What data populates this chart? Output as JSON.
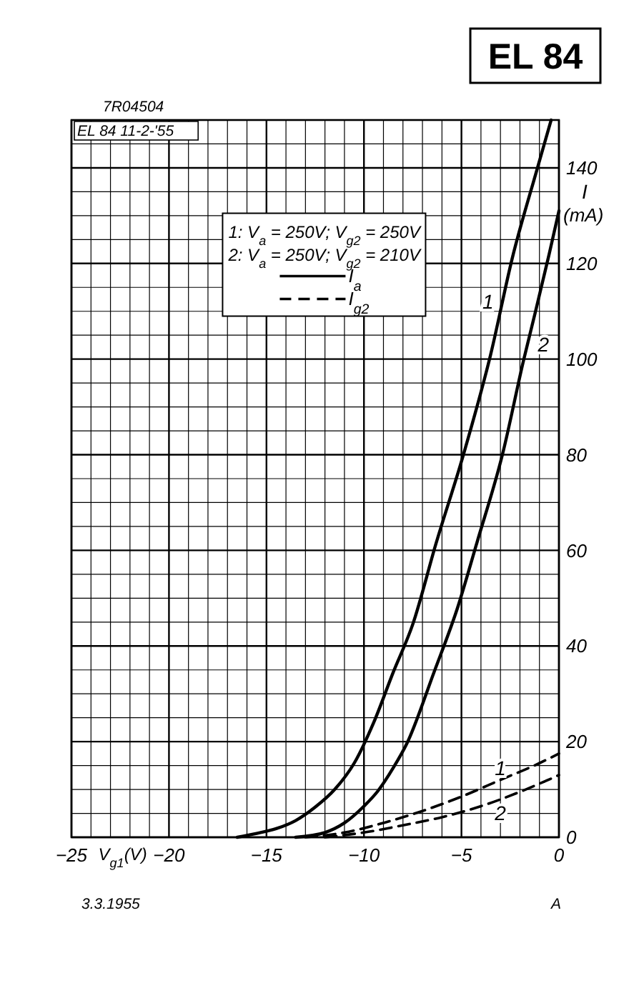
{
  "chart_data": {
    "type": "line",
    "title": "EL 84",
    "xlabel": "V$_{g1}$(V)",
    "ylabel": "I (mA)",
    "legend_title": "1: V$_{a}$ = 250V; V$_{g2}$ = 250V\n2: V$_{a}$ = 250V; V$_{g2}$ = 210V",
    "legend": "top left",
    "grid": true,
    "xlim": [
      -25,
      0
    ],
    "ylim": [
      0,
      150
    ],
    "xticks": [
      {
        "value": -25,
        "label": "−25"
      },
      {
        "value": -24,
        "label": null
      },
      {
        "value": -23,
        "label": null
      },
      {
        "value": -22,
        "label": null
      },
      {
        "value": -21,
        "label": null
      },
      {
        "value": -20,
        "label": "−20"
      },
      {
        "value": -19,
        "label": null
      },
      {
        "value": -18,
        "label": null
      },
      {
        "value": -17,
        "label": null
      },
      {
        "value": -16,
        "label": null
      },
      {
        "value": -15,
        "label": "−15"
      },
      {
        "value": -14,
        "label": null
      },
      {
        "value": -13,
        "label": null
      },
      {
        "value": -12,
        "label": null
      },
      {
        "value": -11,
        "label": null
      },
      {
        "value": -10,
        "label": "−10"
      },
      {
        "value": -9,
        "label": null
      },
      {
        "value": -8,
        "label": null
      },
      {
        "value": -7,
        "label": null
      },
      {
        "value": -6,
        "label": null
      },
      {
        "value": -5,
        "label": "−5"
      },
      {
        "value": -4,
        "label": null
      },
      {
        "value": -3,
        "label": null
      },
      {
        "value": -2,
        "label": null
      },
      {
        "value": -1,
        "label": null
      },
      0
    ],
    "yticks": [
      0,
      {
        "value": 5,
        "label": null
      },
      {
        "value": 10,
        "label": null
      },
      {
        "value": 15,
        "label": null
      },
      20,
      {
        "value": 25,
        "label": null
      },
      {
        "value": 30,
        "label": null
      },
      {
        "value": 35,
        "label": null
      },
      40,
      {
        "value": 45,
        "label": null
      },
      {
        "value": 50,
        "label": null
      },
      {
        "value": 55,
        "label": null
      },
      60,
      {
        "value": 65,
        "label": null
      },
      {
        "value": 70,
        "label": null
      },
      {
        "value": 75,
        "label": null
      },
      80,
      {
        "value": 85,
        "label": null
      },
      {
        "value": 90,
        "label": null
      },
      {
        "value": 95,
        "label": null
      },
      100,
      {
        "value": 105,
        "label": null
      },
      {
        "value": 110,
        "label": null
      },
      {
        "value": 115,
        "label": null
      },
      120,
      {
        "value": 125,
        "label": null
      },
      {
        "value": 130,
        "label": null
      },
      {
        "value": 135,
        "label": null
      },
      140,
      {
        "value": 145,
        "label": null
      },
      {
        "value": 150,
        "label": null
      }
    ],
    "series": [
      {
        "name": "I$_{a}$",
        "color": "#000000",
        "line_style": "solid",
        "x": [
          -16.5,
          -15.5,
          -14.5,
          -13.5,
          -12.5,
          -11.5,
          -10.5,
          -9.5,
          -8.5,
          -7.5,
          -6.3,
          -4.9,
          -3.5,
          -2.4,
          -1.1,
          -0.4
        ],
        "values": [
          0,
          0.8,
          1.8,
          3.5,
          6.3,
          10,
          15.5,
          24,
          34.5,
          44.5,
          61.5,
          80,
          101,
          121,
          140,
          150
        ]
      },
      {
        "color": "#000000",
        "line_style": "solid",
        "x": [
          -13.5,
          -12,
          -11,
          -10,
          -9.3,
          -8.5,
          -7.8,
          -6.4,
          -5.2,
          -4.2,
          -2.9,
          -1.8,
          -1.2,
          -0.5,
          0
        ],
        "values": [
          0,
          1,
          3,
          6.5,
          9.6,
          14.5,
          19.6,
          34.6,
          48,
          61.7,
          80,
          100,
          110,
          122,
          131
        ]
      },
      {
        "name": "I$_{g2}$",
        "color": "#000000",
        "line_style": "dashed",
        "x": [
          -13,
          -11,
          -9,
          -7,
          -5,
          -3,
          -1,
          0
        ],
        "values": [
          0,
          1,
          3,
          5.5,
          8.5,
          12,
          15.5,
          17.5
        ]
      },
      {
        "color": "#000000",
        "line_style": "dashed",
        "x": [
          -12,
          -10,
          -8,
          -6,
          -4,
          -2,
          0
        ],
        "values": [
          0,
          1,
          2.5,
          4.2,
          6.5,
          9.5,
          13
        ]
      }
    ],
    "annotations": [
      "7R04504",
      "EL 84 11-2-'55",
      "3.3.1955",
      "A",
      {
        "text": "1",
        "x": -2.9,
        "y": 112
      },
      {
        "text": "2",
        "x": -1.6,
        "y": 103
      },
      {
        "text": "1",
        "x": -3,
        "y": 12
      },
      {
        "text": "2",
        "x": -3,
        "y": 8
      }
    ]
  }
}
